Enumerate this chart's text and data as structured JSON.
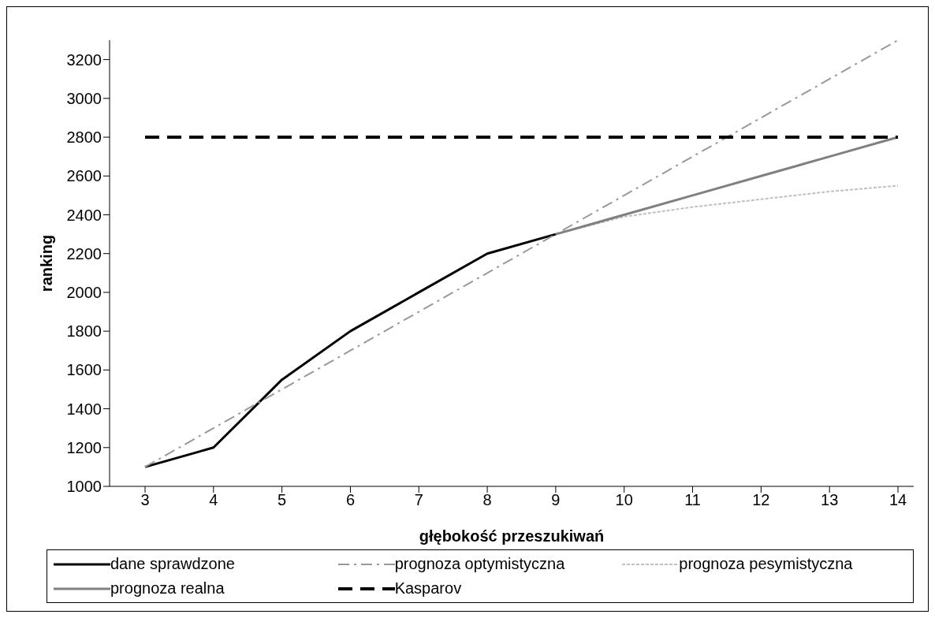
{
  "chart_data": {
    "type": "line",
    "xlabel": "głębokość przeszukiwań",
    "ylabel": "ranking",
    "categories": [
      "3",
      "4",
      "5",
      "6",
      "7",
      "8",
      "9",
      "10",
      "11",
      "12",
      "13",
      "14"
    ],
    "ylim": [
      1000,
      3300
    ],
    "yticks": [
      1000,
      1200,
      1400,
      1600,
      1800,
      2000,
      2200,
      2400,
      2600,
      2800,
      3000,
      3200
    ],
    "grid": false,
    "legend": "bottom",
    "marker": "none",
    "series": [
      {
        "name": "dane sprawdzone",
        "color": "#000000",
        "line_style": "solid",
        "values": [
          1100,
          1200,
          1550,
          1800,
          2000,
          2200,
          2300,
          null,
          null,
          null,
          null,
          null
        ]
      },
      {
        "name": "prognoza optymistyczna",
        "color": "#999999",
        "line_style": "dashdot",
        "values": [
          1100,
          1300,
          1500,
          1700,
          1900,
          2100,
          2300,
          2500,
          2700,
          2900,
          3100,
          3300
        ]
      },
      {
        "name": "prognoza pesymistyczna",
        "color": "#c0c0c0",
        "line_style": "dotted",
        "values": [
          null,
          null,
          null,
          null,
          null,
          null,
          2300,
          2390,
          2440,
          2480,
          2520,
          2550
        ]
      },
      {
        "name": "prognoza realna",
        "color": "#808080",
        "line_style": "solid",
        "values": [
          null,
          null,
          null,
          null,
          null,
          null,
          2300,
          2400,
          2500,
          2600,
          2700,
          2800
        ]
      },
      {
        "name": "Kasparov",
        "color": "#000000",
        "line_style": "dashed",
        "values": [
          2800,
          2800,
          2800,
          2800,
          2800,
          2800,
          2800,
          2800,
          2800,
          2800,
          2800,
          2800
        ]
      }
    ]
  }
}
